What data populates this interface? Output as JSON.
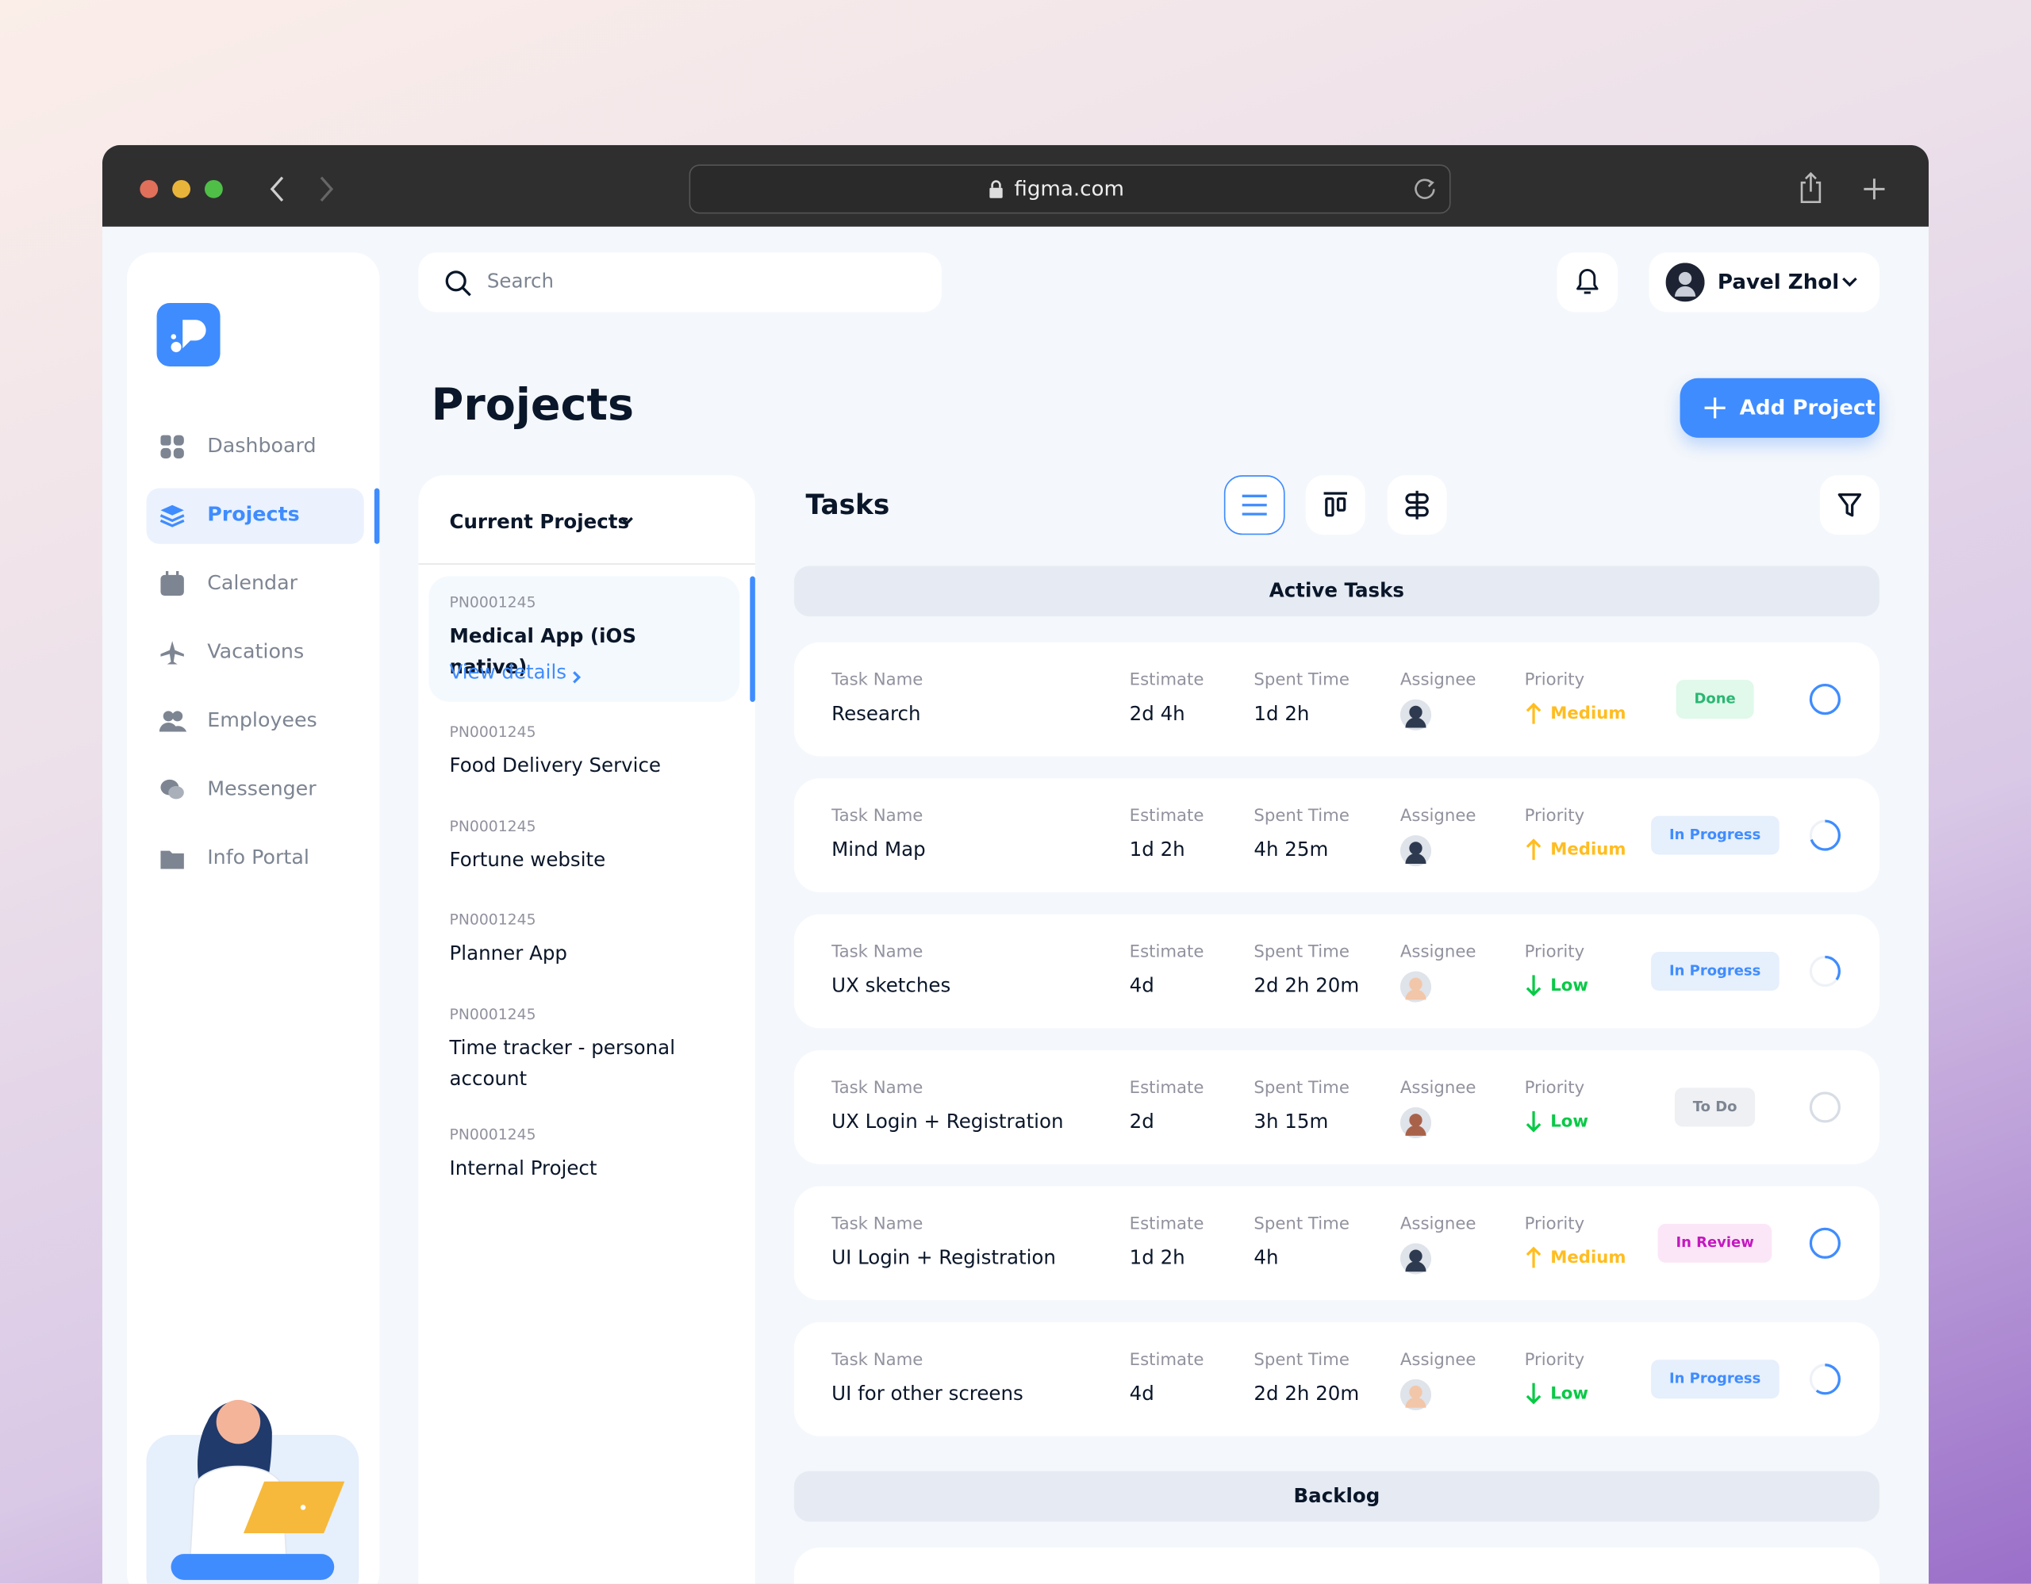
{
  "browser": {
    "url": "figma.com"
  },
  "search": {
    "placeholder": "Search"
  },
  "user": {
    "name": "Pavel Zhol"
  },
  "page_title": "Projects",
  "add_button": "Add Project",
  "nav": [
    "Dashboard",
    "Projects",
    "Calendar",
    "Vacations",
    "Employees",
    "Messenger",
    "Info Portal"
  ],
  "projects_panel": {
    "header": "Current Projects",
    "view_details": "View details",
    "items": [
      {
        "code": "PN0001245",
        "name": "Medical App (iOS native)"
      },
      {
        "code": "PN0001245",
        "name": "Food Delivery Service"
      },
      {
        "code": "PN0001245",
        "name": "Fortune website"
      },
      {
        "code": "PN0001245",
        "name": "Planner App"
      },
      {
        "code": "PN0001245",
        "name": "Time tracker - personal account"
      },
      {
        "code": "PN0001245",
        "name": "Internal Project"
      }
    ]
  },
  "tasks": {
    "title": "Tasks",
    "columns": [
      "Task Name",
      "Estimate",
      "Spent Time",
      "Assignee",
      "Priority"
    ],
    "sections": [
      "Active Tasks",
      "Backlog"
    ],
    "rows": [
      {
        "name": "Research",
        "estimate": "2d 4h",
        "spent": "1d 2h",
        "priority": "Medium",
        "status": "Done"
      },
      {
        "name": "Mind Map",
        "estimate": "1d 2h",
        "spent": "4h 25m",
        "priority": "Medium",
        "status": "In Progress"
      },
      {
        "name": "UX sketches",
        "estimate": "4d",
        "spent": "2d 2h 20m",
        "priority": "Low",
        "status": "In Progress"
      },
      {
        "name": "UX Login + Registration",
        "estimate": "2d",
        "spent": "3h 15m",
        "priority": "Low",
        "status": "To Do"
      },
      {
        "name": "UI Login + Registration",
        "estimate": "1d 2h",
        "spent": "4h",
        "priority": "Medium",
        "status": "In Review"
      },
      {
        "name": "UI for other screens",
        "estimate": "4d",
        "spent": "2d 2h 20m",
        "priority": "Low",
        "status": "In Progress"
      }
    ]
  }
}
